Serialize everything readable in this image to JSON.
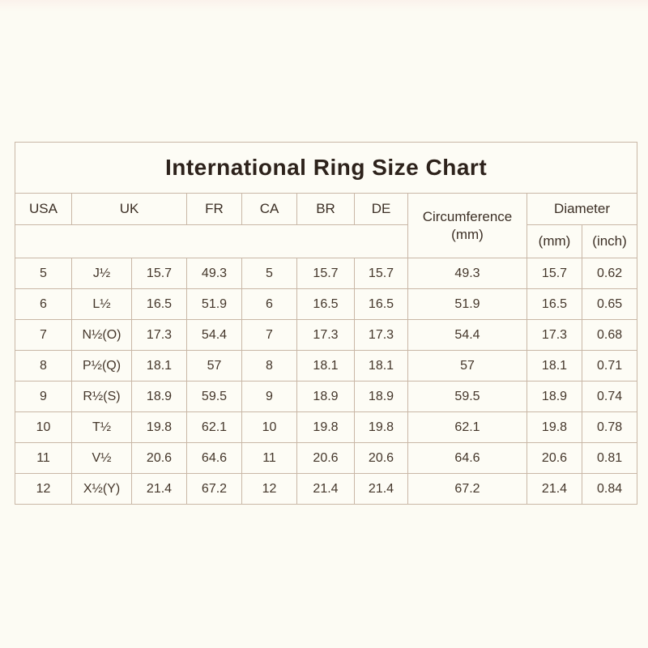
{
  "title": "International Ring Size Chart",
  "headers": {
    "usa": "USA",
    "uk": "UK",
    "fr": "FR",
    "ca": "CA",
    "br": "BR",
    "de": "DE",
    "circumference_line1": "Circumference",
    "circumference_line2": "(mm)",
    "diameter": "Diameter",
    "diameter_mm": "(mm)",
    "diameter_inch": "(inch)"
  },
  "chart_data": {
    "type": "table",
    "title": "International Ring Size Chart",
    "columns": [
      "USA",
      "UK",
      "",
      "FR",
      "CA",
      "BR",
      "DE",
      "Circumference (mm)",
      "Diameter (mm)",
      "Diameter (inch)"
    ],
    "rows": [
      [
        "5",
        "J½",
        "15.7",
        "49.3",
        "5",
        "15.7",
        "15.7",
        "49.3",
        "15.7",
        "0.62"
      ],
      [
        "6",
        "L½",
        "16.5",
        "51.9",
        "6",
        "16.5",
        "16.5",
        "51.9",
        "16.5",
        "0.65"
      ],
      [
        "7",
        "N½(O)",
        "17.3",
        "54.4",
        "7",
        "17.3",
        "17.3",
        "54.4",
        "17.3",
        "0.68"
      ],
      [
        "8",
        "P½(Q)",
        "18.1",
        "57",
        "8",
        "18.1",
        "18.1",
        "57",
        "18.1",
        "0.71"
      ],
      [
        "9",
        "R½(S)",
        "18.9",
        "59.5",
        "9",
        "18.9",
        "18.9",
        "59.5",
        "18.9",
        "0.74"
      ],
      [
        "10",
        "T½",
        "19.8",
        "62.1",
        "10",
        "19.8",
        "19.8",
        "62.1",
        "19.8",
        "0.78"
      ],
      [
        "11",
        "V½",
        "20.6",
        "64.6",
        "11",
        "20.6",
        "20.6",
        "64.6",
        "20.6",
        "0.81"
      ],
      [
        "12",
        "X½(Y)",
        "21.4",
        "67.2",
        "12",
        "21.4",
        "21.4",
        "67.2",
        "21.4",
        "0.84"
      ]
    ]
  },
  "colors": {
    "page_background": "#fcfbf3",
    "table_background": "#fdfcf5",
    "border": "#c9b7a6",
    "text": "#44362a",
    "title_text": "#2d221b"
  }
}
